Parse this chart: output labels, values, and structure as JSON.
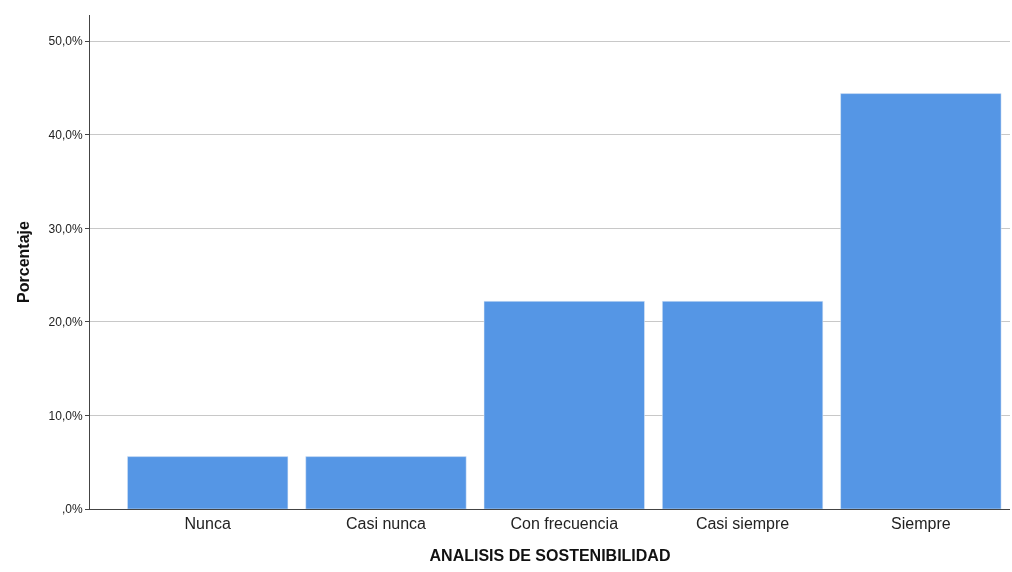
{
  "chart_data": {
    "type": "bar",
    "xlabel": "ANALISIS DE SOSTENIBILIDAD",
    "ylabel": "Porcentaje",
    "categories": [
      "Nunca",
      "Casi nunca",
      "Con frecuencia",
      "Casi siempre",
      "Siempre"
    ],
    "values": [
      5.6,
      5.6,
      22.2,
      22.2,
      44.4
    ],
    "color": "#5596e5",
    "ylim": [
      0,
      52.8
    ],
    "yticks": [
      {
        "value": 0,
        "label": ",0%"
      },
      {
        "value": 10,
        "label": "10,0%"
      },
      {
        "value": 20,
        "label": "20,0%"
      },
      {
        "value": 30,
        "label": "30,0%"
      },
      {
        "value": 40,
        "label": "40,0%"
      },
      {
        "value": 50,
        "label": "50,0%"
      }
    ],
    "grid": "y"
  }
}
